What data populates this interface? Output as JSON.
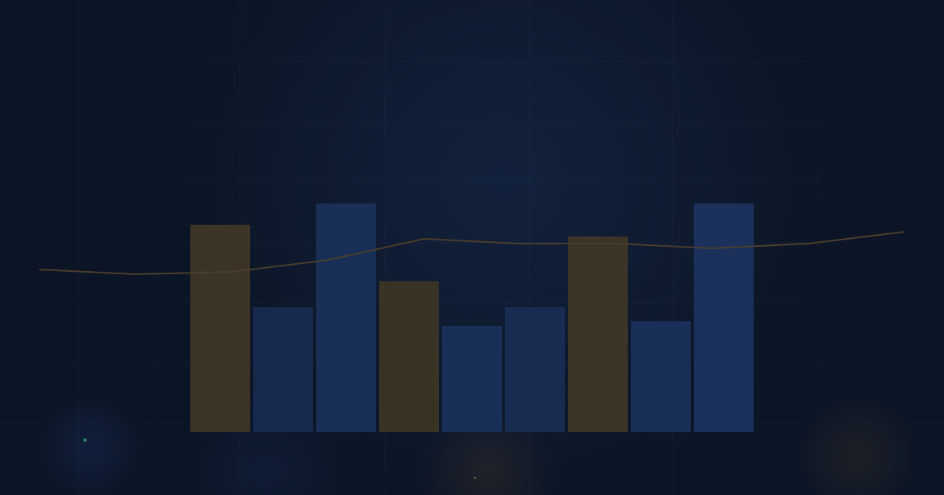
{
  "chart_data": [
    {
      "type": "bar",
      "categories": [
        null,
        null,
        null,
        null,
        null,
        null,
        null,
        null,
        null
      ],
      "values": [
        88,
        53,
        97,
        64,
        45,
        53,
        83,
        47,
        97
      ],
      "colors": [
        "#3d3428",
        "#172a4d",
        "#1a2f58",
        "#393326",
        "#1a2f58",
        "#182b50",
        "#3d3428",
        "#1a2f58",
        "#1b315c"
      ],
      "ylim": [
        0,
        100
      ]
    },
    {
      "type": "line",
      "categories": [
        null,
        null,
        null,
        null,
        null,
        null,
        null,
        null,
        null,
        null
      ],
      "values": [
        69,
        67,
        68,
        73,
        82,
        80,
        80,
        78,
        80,
        85
      ],
      "color": "#4a3e2c",
      "ylim": [
        0,
        100
      ]
    }
  ]
}
